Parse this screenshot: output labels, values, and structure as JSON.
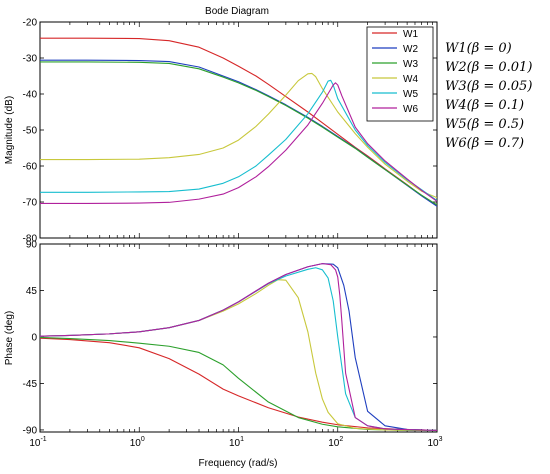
{
  "chart_data": [
    {
      "type": "line",
      "title": "Bode Diagram",
      "xlabel": "",
      "ylabel": "Magnitude (dB)",
      "xscale": "log",
      "xlim": [
        0.1,
        1000
      ],
      "ylim": [
        -80,
        -20
      ],
      "yticks": [
        "-20",
        "-30",
        "-40",
        "-50",
        "-60",
        "-70",
        "-80"
      ],
      "grid": false,
      "legend_position": "top-right",
      "series": [
        {
          "name": "W1",
          "color": "#d62728",
          "x": [
            0.1,
            0.3,
            1,
            2,
            4,
            7,
            10,
            15,
            20,
            30,
            50,
            70,
            100,
            150,
            200,
            300,
            500,
            700,
            1000
          ],
          "values": [
            -24.5,
            -24.5,
            -24.6,
            -25.2,
            -27.0,
            -30.0,
            -32.3,
            -35.0,
            -37.3,
            -40.7,
            -45.0,
            -48.0,
            -51.2,
            -54.8,
            -57.2,
            -60.8,
            -65.2,
            -68.2,
            -71.0
          ]
        },
        {
          "name": "W2",
          "color": "#1f3fbf",
          "x": [
            0.1,
            0.3,
            1,
            2,
            4,
            7,
            10,
            15,
            20,
            30,
            50,
            70,
            100,
            150,
            200,
            300,
            500,
            700,
            1000
          ],
          "values": [
            -30.6,
            -30.6,
            -30.7,
            -31.0,
            -32.5,
            -35.0,
            -36.6,
            -38.8,
            -40.5,
            -43.0,
            -46.5,
            -49.0,
            -51.8,
            -55.0,
            -57.5,
            -61.0,
            -65.4,
            -68.3,
            -71.2
          ]
        },
        {
          "name": "W3",
          "color": "#2ca02c",
          "x": [
            0.1,
            0.3,
            1,
            2,
            4,
            7,
            10,
            15,
            20,
            30,
            50,
            70,
            100,
            150,
            200,
            300,
            500,
            700,
            1000
          ],
          "values": [
            -31.1,
            -31.1,
            -31.2,
            -31.5,
            -33.0,
            -35.3,
            -36.9,
            -39.0,
            -40.7,
            -43.2,
            -46.7,
            -49.2,
            -52.0,
            -55.1,
            -57.6,
            -61.0,
            -65.3,
            -68.1,
            -70.8
          ]
        },
        {
          "name": "W4",
          "color": "#c8c83c",
          "x": [
            0.1,
            0.3,
            1,
            2,
            4,
            7,
            10,
            15,
            20,
            30,
            40,
            50,
            55,
            60,
            70,
            100,
            150,
            200,
            300,
            500,
            700,
            1000
          ],
          "values": [
            -58.2,
            -58.2,
            -58.1,
            -57.7,
            -56.8,
            -55.0,
            -52.8,
            -49.0,
            -45.6,
            -40.3,
            -36.3,
            -34.4,
            -34.3,
            -35.2,
            -38.5,
            -45.0,
            -51.0,
            -54.8,
            -59.5,
            -64.2,
            -67.0,
            -68.8
          ]
        },
        {
          "name": "W5",
          "color": "#17becf",
          "x": [
            0.1,
            0.3,
            1,
            2,
            4,
            7,
            10,
            15,
            20,
            30,
            50,
            70,
            80,
            85,
            90,
            100,
            150,
            200,
            300,
            500,
            700,
            1000
          ],
          "values": [
            -67.3,
            -67.3,
            -67.2,
            -67.1,
            -66.4,
            -64.8,
            -63.0,
            -60.0,
            -57.0,
            -52.6,
            -45.5,
            -39.5,
            -36.4,
            -36.2,
            -37.5,
            -41.3,
            -50.0,
            -54.3,
            -59.0,
            -63.8,
            -66.6,
            -69.6
          ]
        },
        {
          "name": "W6",
          "color": "#b0209c",
          "x": [
            0.1,
            0.3,
            1,
            2,
            4,
            7,
            10,
            15,
            20,
            30,
            50,
            70,
            90,
            95,
            100,
            110,
            150,
            200,
            300,
            500,
            700,
            1000
          ],
          "values": [
            -70.4,
            -70.4,
            -70.3,
            -70.1,
            -69.2,
            -67.8,
            -66.0,
            -63.0,
            -60.2,
            -55.6,
            -48.6,
            -42.6,
            -37.5,
            -36.9,
            -37.5,
            -40.5,
            -49.2,
            -53.8,
            -58.6,
            -63.6,
            -66.8,
            -69.8
          ]
        }
      ]
    },
    {
      "type": "line",
      "xlabel": "Frequency (rad/s)",
      "ylabel": "Phase (deg)",
      "xscale": "log",
      "xlim": [
        0.1,
        1000
      ],
      "ylim": [
        -92,
        90
      ],
      "yticks": [
        "90",
        "45",
        "0",
        "-45",
        "-90"
      ],
      "xticks": [
        "10",
        "10",
        "10",
        "10",
        "10"
      ],
      "xtick_exponents": [
        "-1",
        "0",
        "1",
        "2",
        "3"
      ],
      "grid": false,
      "series": [
        {
          "name": "W1",
          "color": "#d62728",
          "x": [
            0.1,
            0.2,
            0.5,
            1,
            2,
            4,
            7,
            10,
            20,
            40,
            70,
            100,
            200,
            400,
            700,
            1000
          ],
          "values": [
            -1.2,
            -2.5,
            -5.5,
            -10.5,
            -21.0,
            -36.0,
            -50.5,
            -57.0,
            -68.5,
            -77.5,
            -82.5,
            -85.0,
            -88.0,
            -89.3,
            -90.0,
            -90.3
          ]
        },
        {
          "name": "W2",
          "color": "#1f3fbf",
          "x": [
            0.1,
            0.2,
            0.5,
            1,
            2,
            4,
            7,
            10,
            20,
            30,
            50,
            70,
            90,
            100,
            115,
            130,
            150,
            200,
            300,
            500,
            1000
          ],
          "values": [
            0.8,
            1.5,
            3.0,
            5.0,
            9.0,
            16.0,
            26.0,
            34.0,
            52.0,
            60.5,
            68.0,
            71.0,
            70.5,
            67.0,
            50.0,
            25.0,
            -20.0,
            -72.0,
            -86.0,
            -89.5,
            -90.5
          ]
        },
        {
          "name": "W3",
          "color": "#2ca02c",
          "x": [
            0.1,
            0.2,
            0.5,
            1,
            2,
            4,
            7,
            10,
            20,
            40,
            70,
            100,
            200,
            400,
            700,
            1000
          ],
          "values": [
            -0.5,
            -1.5,
            -3.5,
            -6.0,
            -9.0,
            -15.0,
            -27.0,
            -40.0,
            -63.0,
            -78.0,
            -84.5,
            -87.0,
            -89.5,
            -90.2,
            -90.5,
            -90.6
          ]
        },
        {
          "name": "W4",
          "color": "#c8c83c",
          "x": [
            0.1,
            0.2,
            0.5,
            1,
            2,
            4,
            7,
            10,
            15,
            20,
            25,
            30,
            40,
            50,
            60,
            70,
            80,
            100,
            150,
            300,
            1000
          ],
          "values": [
            0.8,
            1.5,
            3.0,
            5.0,
            9.0,
            16.0,
            25.0,
            32.0,
            42.0,
            50.0,
            55.5,
            55.0,
            38.0,
            5.0,
            -35.0,
            -60.0,
            -73.0,
            -84.0,
            -88.5,
            -90.0,
            -90.5
          ]
        },
        {
          "name": "W5",
          "color": "#17becf",
          "x": [
            0.1,
            0.2,
            0.5,
            1,
            2,
            4,
            7,
            10,
            20,
            30,
            50,
            60,
            70,
            80,
            90,
            100,
            120,
            150,
            200,
            300,
            1000
          ],
          "values": [
            0.8,
            1.5,
            3.0,
            5.0,
            9.0,
            16.0,
            26.0,
            34.0,
            51.5,
            59.0,
            65.5,
            67.0,
            65.0,
            57.0,
            35.0,
            0.0,
            -55.0,
            -78.0,
            -86.0,
            -89.0,
            -90.5
          ]
        },
        {
          "name": "W6",
          "color": "#b0209c",
          "x": [
            0.1,
            0.2,
            0.5,
            1,
            2,
            4,
            7,
            10,
            20,
            30,
            50,
            70,
            85,
            95,
            100,
            105,
            110,
            120,
            150,
            200,
            300,
            1000
          ],
          "values": [
            0.8,
            1.5,
            3.0,
            5.0,
            9.0,
            16.0,
            26.0,
            34.0,
            52.0,
            60.5,
            68.0,
            71.0,
            70.0,
            65.0,
            58.0,
            40.0,
            15.0,
            -35.0,
            -78.0,
            -86.0,
            -89.0,
            -90.5
          ]
        }
      ]
    }
  ],
  "annotations": [
    "W1(β = 0)",
    "W2(β = 0.01)",
    "W3(β = 0.05)",
    "W4(β = 0.1)",
    "W5(β = 0.5)",
    "W6(β = 0.7)"
  ]
}
